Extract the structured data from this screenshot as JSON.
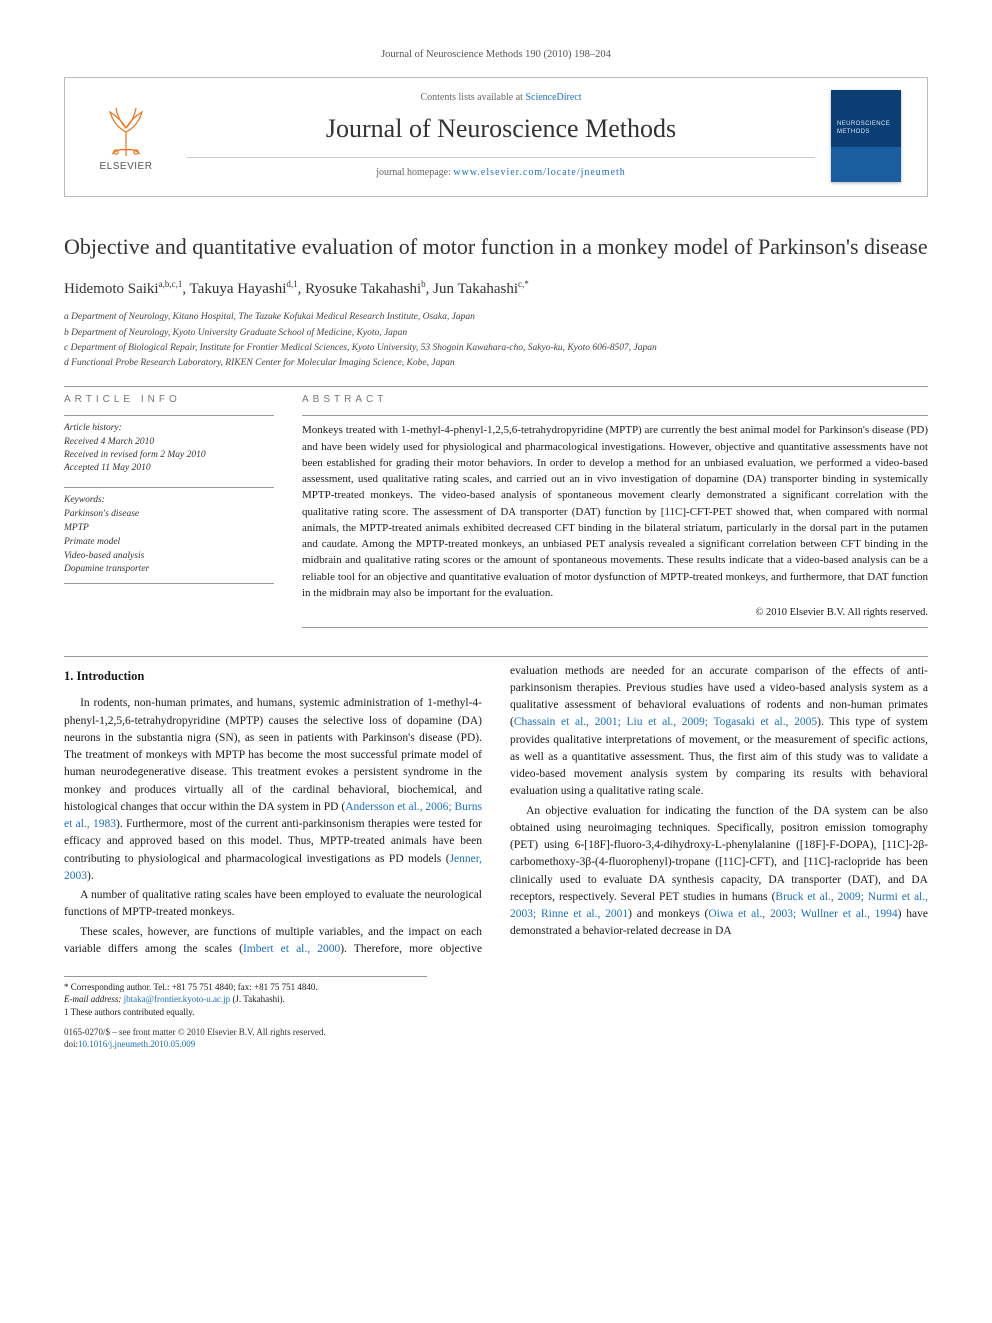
{
  "running_head": "Journal of Neuroscience Methods 190 (2010) 198–204",
  "masthead": {
    "contents_line_prefix": "Contents lists available at ",
    "contents_line_link": "ScienceDirect",
    "journal_name": "Journal of Neuroscience Methods",
    "homepage_prefix": "journal homepage: ",
    "homepage_url": "www.elsevier.com/locate/jneumeth",
    "publisher_wordmark": "ELSEVIER"
  },
  "article": {
    "title": "Objective and quantitative evaluation of motor function in a monkey model of Parkinson's disease",
    "authors_html": "Hidemoto Saiki<sup>a,b,c,1</sup>, Takuya Hayashi<sup>d,1</sup>, Ryosuke Takahashi<sup>b</sup>, Jun Takahashi<sup>c,*</sup>",
    "affiliations": [
      "a Department of Neurology, Kitano Hospital, The Tazuke Kofukai Medical Research Institute, Osaka, Japan",
      "b Department of Neurology, Kyoto University Graduate School of Medicine, Kyoto, Japan",
      "c Department of Biological Repair, Institute for Frontier Medical Sciences, Kyoto University, 53 Shogoin Kawahara-cho, Sakyo-ku, Kyoto 606-8507, Japan",
      "d Functional Probe Research Laboratory, RIKEN Center for Molecular Imaging Science, Kobe, Japan"
    ]
  },
  "article_info": {
    "label": "ARTICLE INFO",
    "history_label": "Article history:",
    "history": [
      "Received 4 March 2010",
      "Received in revised form 2 May 2010",
      "Accepted 11 May 2010"
    ],
    "keywords_label": "Keywords:",
    "keywords": [
      "Parkinson's disease",
      "MPTP",
      "Primate model",
      "Video-based analysis",
      "Dopamine transporter"
    ]
  },
  "abstract": {
    "label": "ABSTRACT",
    "body": "Monkeys treated with 1-methyl-4-phenyl-1,2,5,6-tetrahydropyridine (MPTP) are currently the best animal model for Parkinson's disease (PD) and have been widely used for physiological and pharmacological investigations. However, objective and quantitative assessments have not been established for grading their motor behaviors. In order to develop a method for an unbiased evaluation, we performed a video-based assessment, used qualitative rating scales, and carried out an in vivo investigation of dopamine (DA) transporter binding in systemically MPTP-treated monkeys. The video-based analysis of spontaneous movement clearly demonstrated a significant correlation with the qualitative rating score. The assessment of DA transporter (DAT) function by [11C]-CFT-PET showed that, when compared with normal animals, the MPTP-treated animals exhibited decreased CFT binding in the bilateral striatum, particularly in the dorsal part in the putamen and caudate. Among the MPTP-treated monkeys, an unbiased PET analysis revealed a significant correlation between CFT binding in the midbrain and qualitative rating scores or the amount of spontaneous movements. These results indicate that a video-based analysis can be a reliable tool for an objective and quantitative evaluation of motor dysfunction of MPTP-treated monkeys, and furthermore, that DAT function in the midbrain may also be important for the evaluation.",
    "copyright": "© 2010 Elsevier B.V. All rights reserved."
  },
  "body": {
    "section_heading": "1. Introduction",
    "p1_pre": "In rodents, non-human primates, and humans, systemic administration of 1-methyl-4-phenyl-1,2,5,6-tetrahydropyridine (MPTP) causes the selective loss of dopamine (DA) neurons in the substantia nigra (SN), as seen in patients with Parkinson's disease (PD). The treatment of monkeys with MPTP has become the most successful primate model of human neurodegenerative disease. This treatment evokes a persistent syndrome in the monkey and produces virtually all of the cardinal behavioral, biochemical, and histological changes that occur within the DA system in PD (",
    "p1_cite1": "Andersson et al., 2006; Burns et al., 1983",
    "p1_mid": "). Furthermore, most of the current anti-parkinsonism therapies were tested for efficacy and approved based on this model. Thus, MPTP-treated animals have been contributing to physiological and pharmacological investigations as PD models (",
    "p1_cite2": "Jenner, 2003",
    "p1_post": ").",
    "p2": "A number of qualitative rating scales have been employed to evaluate the neurological functions of MPTP-treated monkeys.",
    "p3_pre": "These scales, however, are functions of multiple variables, and the impact on each variable differs among the scales (",
    "p3_cite1": "Imbert et al., 2000",
    "p3_mid1": "). Therefore, more objective evaluation methods are needed for an accurate comparison of the effects of anti-parkinsonism therapies. Previous studies have used a video-based analysis system as a qualitative assessment of behavioral evaluations of rodents and non-human primates (",
    "p3_cite2": "Chassain et al., 2001; Liu et al., 2009; Togasaki et al., 2005",
    "p3_mid2": "). This type of system provides qualitative interpretations of movement, or the measurement of specific actions, as well as a quantitative assessment. Thus, the first aim of this study was to validate a video-based movement analysis system by comparing its results with behavioral evaluation using a qualitative rating scale.",
    "p4_pre": "An objective evaluation for indicating the function of the DA system can be also obtained using neuroimaging techniques. Specifically, positron emission tomography (PET) using 6-[18F]-fluoro-3,4-dihydroxy-L-phenylalanine ([18F]-F-DOPA), [11C]-2β-carbomethoxy-3β-(4-fluorophenyl)-tropane ([11C]-CFT), and [11C]-raclopride has been clinically used to evaluate DA synthesis capacity, DA transporter (DAT), and DA receptors, respectively. Several PET studies in humans (",
    "p4_cite1": "Bruck et al., 2009; Nurmi et al., 2003; Rinne et al., 2001",
    "p4_mid": ") and monkeys (",
    "p4_cite2": "Oiwa et al., 2003; Wullner et al., 1994",
    "p4_post": ") have demonstrated a behavior-related decrease in DA"
  },
  "footnotes": {
    "corr": "* Corresponding author. Tel.: +81 75 751 4840; fax: +81 75 751 4840.",
    "email_label": "E-mail address: ",
    "email": "jbtaka@frontier.kyoto-u.ac.jp",
    "email_paren": " (J. Takahashi).",
    "equal": "1 These authors contributed equally."
  },
  "doi_block": {
    "front_matter": "0165-0270/$ – see front matter © 2010 Elsevier B.V. All rights reserved.",
    "doi_label": "doi:",
    "doi": "10.1016/j.jneumeth.2010.05.009"
  },
  "colors": {
    "link": "#1e6fbf",
    "elsevier_orange": "#e9711c",
    "cover_blue_top": "#0b3f74",
    "cover_blue_bottom": "#1a5ea0",
    "rule": "#999999",
    "text": "#1a1a1a"
  },
  "typography": {
    "title_fontsize_pt": 18,
    "journal_name_fontsize_pt": 20,
    "body_fontsize_pt": 9,
    "abstract_fontsize_pt": 8.5,
    "affil_fontsize_pt": 7.5,
    "footnote_fontsize_pt": 7
  }
}
